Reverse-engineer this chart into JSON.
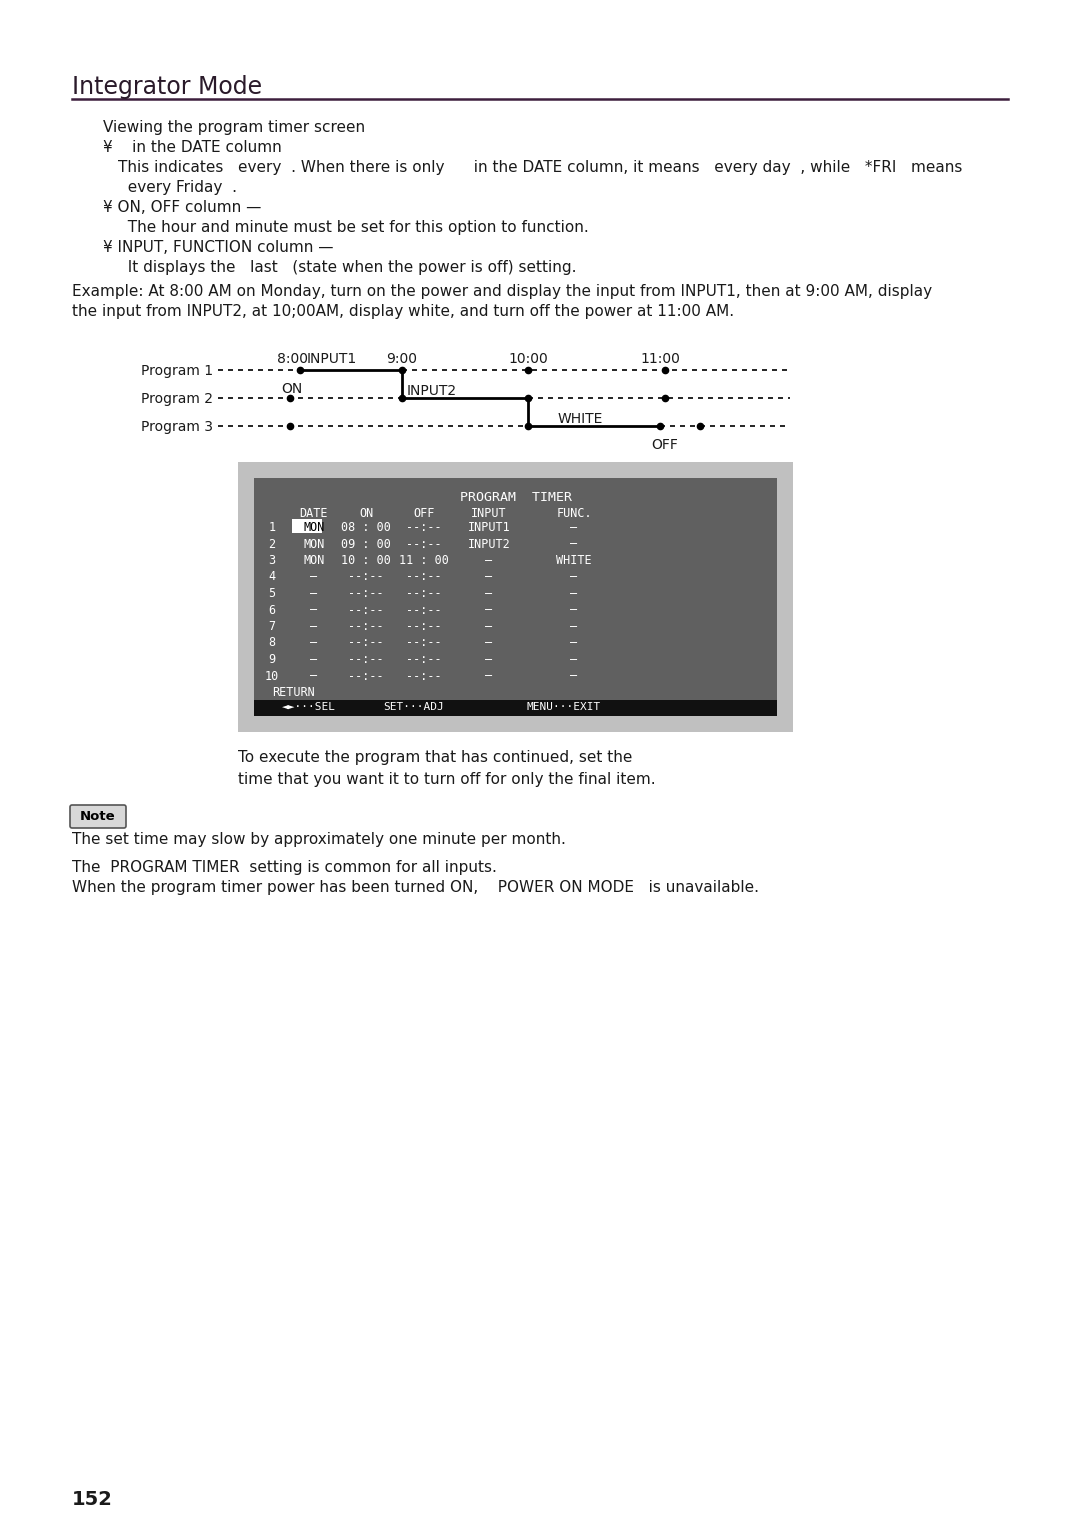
{
  "bg_color": "#ffffff",
  "page_title": "Integrator Mode",
  "title_color": "#2a1a2a",
  "title_hr_color": "#3d1f3d",
  "body_color": "#1a1a1a",
  "heading1": "Viewing the program timer screen",
  "bullet_char": "¥",
  "sub_texts": [
    "This indicates   every  . When there is only      in the DATE column, it means   every day  , while   *FRI   means",
    "  every Friday  .",
    "  The hour and minute must be set for this option to function.",
    "  It displays the   last   (state when the power is off) setting."
  ],
  "example_text1": "Example: At 8:00 AM on Monday, turn on the power and display the input from INPUT1, then at 9:00 AM, display",
  "example_text2": "the input from INPUT2, at 10;00AM, display white, and turn off the power at 11:00 AM.",
  "note_text": "The set time may slow by approximately one minute per month.",
  "footer_texts": [
    "The  PROGRAM TIMER  setting is common for all inputs.",
    "When the program timer power has been turned ON,    POWER ON MODE   is unavailable."
  ],
  "page_number": "152",
  "screen": {
    "title": "PROGRAM  TIMER",
    "headers": [
      "DATE",
      "ON",
      "OFF",
      "INPUT",
      "FUNC."
    ],
    "rows": [
      [
        "1",
        "MON",
        "08 : 00",
        "--:--",
        "INPUT1",
        "–"
      ],
      [
        "2",
        "MON",
        "09 : 00",
        "--:--",
        "INPUT2",
        "–"
      ],
      [
        "3",
        "MON",
        "10 : 00",
        "11 : 00",
        "–",
        "WHITE"
      ],
      [
        "4",
        "–",
        "--:--",
        "--:--",
        "–",
        "–"
      ],
      [
        "5",
        "–",
        "--:--",
        "--:--",
        "–",
        "–"
      ],
      [
        "6",
        "–",
        "--:--",
        "--:--",
        "–",
        "–"
      ],
      [
        "7",
        "–",
        "--:--",
        "--:--",
        "–",
        "–"
      ],
      [
        "8",
        "–",
        "--:--",
        "--:--",
        "–",
        "–"
      ],
      [
        "9",
        "–",
        "--:--",
        "--:--",
        "–",
        "–"
      ],
      [
        "10",
        "–",
        "--:--",
        "--:--",
        "–",
        "–"
      ]
    ],
    "footer": "RETURN",
    "ctrl_left": "◄►···SEL",
    "ctrl_mid": "SET···ADJ",
    "ctrl_right": "MENU···EXIT"
  }
}
